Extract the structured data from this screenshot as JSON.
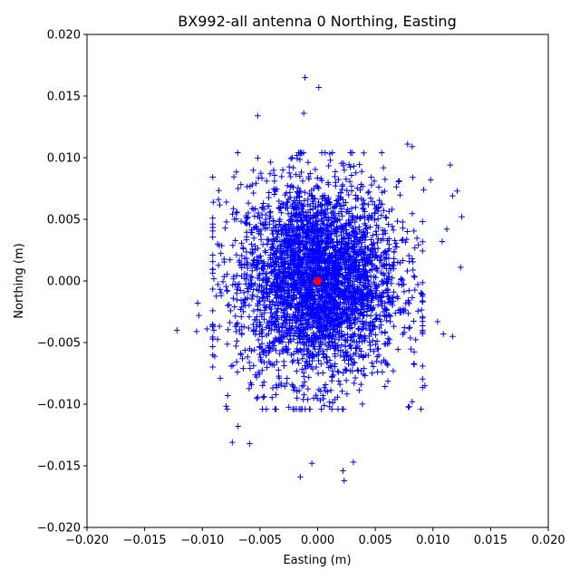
{
  "chart_data": {
    "type": "scatter",
    "title": "BX992-all antenna 0 Northing, Easting",
    "xlabel": "Easting (m)",
    "ylabel": "Northing (m)",
    "xlim": [
      -0.02,
      0.02
    ],
    "ylim": [
      -0.02,
      0.02
    ],
    "xticks": [
      "−0.020",
      "−0.015",
      "−0.010",
      "−0.005",
      "0.000",
      "0.005",
      "0.010",
      "0.015",
      "0.020"
    ],
    "yticks": [
      "−0.020",
      "−0.015",
      "−0.010",
      "−0.005",
      "0.000",
      "0.005",
      "0.010",
      "0.015",
      "0.020"
    ],
    "grid": false,
    "series": [
      {
        "marker": "plus",
        "color": "#0000ff",
        "distribution": {
          "center": [
            0.0,
            0.0
          ],
          "core_std": [
            0.0035,
            0.004
          ],
          "n_points": 3500
        },
        "outliers": [
          [
            -0.0122,
            -0.004
          ],
          [
            -0.0105,
            -0.0041
          ],
          [
            -0.0104,
            -0.0018
          ],
          [
            -0.0103,
            -0.0028
          ],
          [
            -0.0096,
            -0.0039
          ],
          [
            -0.009,
            -0.004
          ],
          [
            -0.0086,
            0.0066
          ],
          [
            -0.0074,
            -0.0131
          ],
          [
            -0.0059,
            -0.0132
          ],
          [
            -0.0052,
            0.0134
          ],
          [
            -0.0011,
            0.0165
          ],
          [
            0.0001,
            0.0157
          ],
          [
            -0.0012,
            0.0136
          ],
          [
            0.0023,
            -0.0162
          ],
          [
            0.0022,
            -0.0154
          ],
          [
            0.0031,
            -0.0147
          ],
          [
            -0.0015,
            -0.0159
          ],
          [
            -0.0005,
            -0.0148
          ],
          [
            0.0098,
            0.0082
          ],
          [
            0.0108,
            0.0032
          ],
          [
            0.0112,
            0.0042
          ],
          [
            0.0117,
            0.0069
          ],
          [
            0.0125,
            0.0052
          ],
          [
            0.0124,
            0.0011
          ],
          [
            0.0117,
            -0.0045
          ],
          [
            0.0104,
            -0.0033
          ],
          [
            0.0109,
            -0.0043
          ],
          [
            0.0093,
            -0.0085
          ],
          [
            0.0082,
            0.0109
          ],
          [
            0.0092,
            0.0074
          ],
          [
            0.0078,
            0.0111
          ],
          [
            0.0115,
            0.0094
          ],
          [
            0.0121,
            0.0073
          ],
          [
            0.0082,
            -0.0098
          ],
          [
            -0.0069,
            -0.0118
          ],
          [
            -0.0078,
            -0.0093
          ]
        ]
      },
      {
        "marker": "circle",
        "color": "#ff0000",
        "points": [
          [
            0.0,
            0.0
          ]
        ]
      }
    ]
  }
}
